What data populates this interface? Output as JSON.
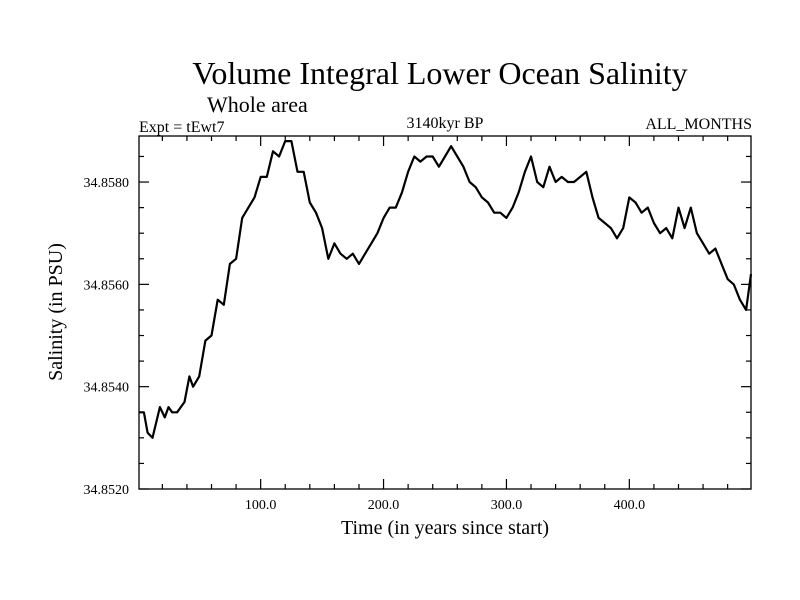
{
  "chart_data": {
    "type": "line",
    "title": "Volume Integral Lower Ocean Salinity",
    "subtitle": "Whole area",
    "left_label": "Expt = tEwt7",
    "center_label": "3140kyr BP",
    "right_label": "ALL_MONTHS",
    "xlabel": "Time (in years since start)",
    "ylabel": "Salinity (in PSU)",
    "xlim": [
      1,
      499
    ],
    "ylim": [
      34.852,
      34.8589
    ],
    "x_ticks": [
      {
        "value": 100,
        "label": "100.0"
      },
      {
        "value": 200,
        "label": "200.0"
      },
      {
        "value": 300,
        "label": "300.0"
      },
      {
        "value": 400,
        "label": "400.0"
      }
    ],
    "y_ticks": [
      {
        "value": 34.852,
        "label": "34.8520"
      },
      {
        "value": 34.854,
        "label": "34.8540"
      },
      {
        "value": 34.856,
        "label": "34.8560"
      },
      {
        "value": 34.858,
        "label": "34.8580"
      }
    ],
    "series": [
      {
        "name": "Salinity",
        "x": [
          1,
          5,
          8,
          12,
          15,
          18,
          22,
          25,
          28,
          32,
          35,
          38,
          42,
          45,
          50,
          55,
          60,
          65,
          70,
          75,
          80,
          85,
          90,
          95,
          100,
          105,
          110,
          115,
          120,
          125,
          130,
          135,
          140,
          145,
          150,
          155,
          160,
          165,
          170,
          175,
          180,
          185,
          190,
          195,
          200,
          205,
          210,
          215,
          220,
          225,
          230,
          235,
          240,
          245,
          250,
          255,
          260,
          265,
          270,
          275,
          280,
          285,
          290,
          295,
          300,
          305,
          310,
          315,
          320,
          325,
          330,
          335,
          340,
          345,
          350,
          355,
          360,
          365,
          370,
          375,
          380,
          385,
          390,
          395,
          400,
          405,
          410,
          415,
          420,
          425,
          430,
          435,
          440,
          445,
          450,
          455,
          460,
          465,
          470,
          475,
          480,
          485,
          490,
          495,
          499
        ],
        "y": [
          34.8535,
          34.8535,
          34.8531,
          34.853,
          34.8533,
          34.8536,
          34.8534,
          34.8536,
          34.8535,
          34.8535,
          34.8536,
          34.8537,
          34.8542,
          34.854,
          34.8542,
          34.8549,
          34.855,
          34.8557,
          34.8556,
          34.8564,
          34.8565,
          34.8573,
          34.8575,
          34.8577,
          34.8581,
          34.8581,
          34.8586,
          34.8585,
          34.8588,
          34.8588,
          34.8582,
          34.8582,
          34.8576,
          34.8574,
          34.8571,
          34.8565,
          34.8568,
          34.8566,
          34.8565,
          34.8566,
          34.8564,
          34.8566,
          34.8568,
          34.857,
          34.8573,
          34.8575,
          34.8575,
          34.8578,
          34.8582,
          34.8585,
          34.8584,
          34.8585,
          34.8585,
          34.8583,
          34.8585,
          34.8587,
          34.8585,
          34.8583,
          34.858,
          34.8579,
          34.8577,
          34.8576,
          34.8574,
          34.8574,
          34.8573,
          34.8575,
          34.8578,
          34.8582,
          34.8585,
          34.858,
          34.8579,
          34.8583,
          34.858,
          34.8581,
          34.858,
          34.858,
          34.8581,
          34.8582,
          34.8577,
          34.8573,
          34.8572,
          34.8571,
          34.8569,
          34.8571,
          34.8577,
          34.8576,
          34.8574,
          34.8575,
          34.8572,
          34.857,
          34.8571,
          34.8569,
          34.8575,
          34.8571,
          34.8575,
          34.857,
          34.8568,
          34.8566,
          34.8567,
          34.8564,
          34.8561,
          34.856,
          34.8557,
          34.8555,
          34.8562
        ]
      }
    ]
  }
}
